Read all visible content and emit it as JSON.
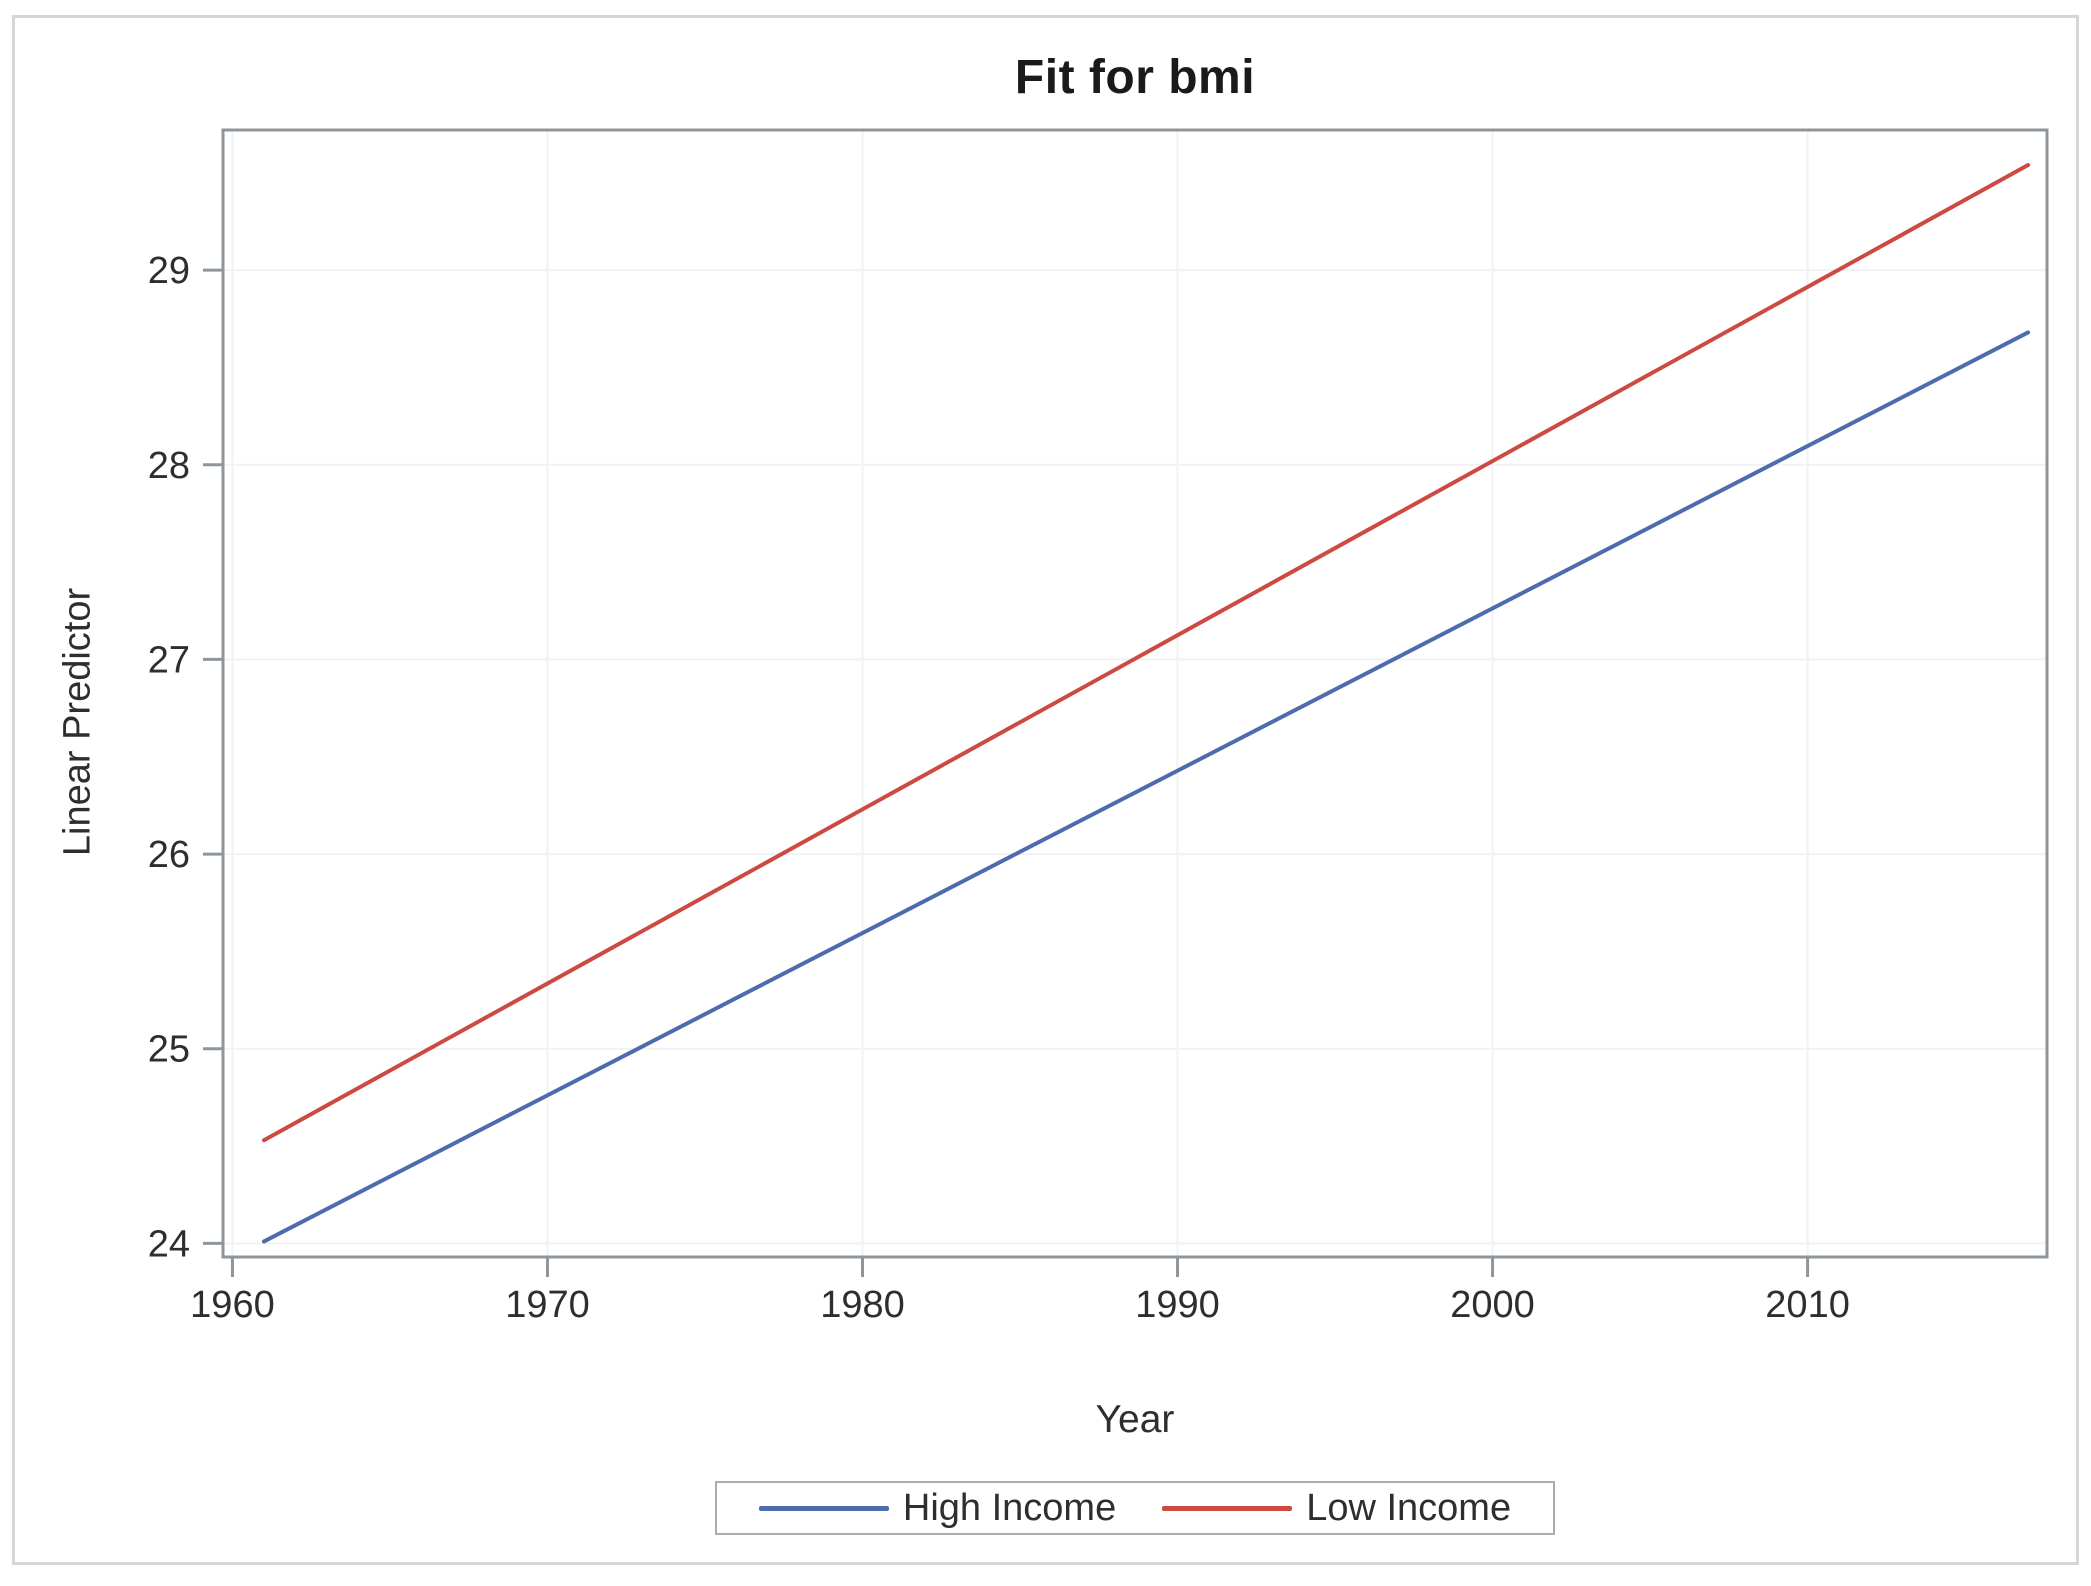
{
  "colors": {
    "frame": "#8f969b",
    "grid": "#f0f2f3",
    "tick_mark": "#8f969b",
    "tick_label": "#2e2e2e",
    "outer_border": "#d3d6d8",
    "legend_border": "#a8adb0",
    "high_income": "#4c6cae",
    "low_income": "#cc4a41"
  },
  "chart_data": {
    "type": "line",
    "title": "Fit for bmi",
    "xlabel": "Year",
    "ylabel": "Linear Predictor",
    "xlim": [
      1959.7,
      2017.6
    ],
    "ylim": [
      23.93,
      29.72
    ],
    "x_ticks": [
      1960,
      1970,
      1980,
      1990,
      2000,
      2010
    ],
    "y_ticks": [
      24,
      25,
      26,
      27,
      28,
      29
    ],
    "grid": true,
    "legend_position": "bottom",
    "series": [
      {
        "name": "High Income",
        "color": "#4c6cae",
        "x": [
          1961,
          2017
        ],
        "y": [
          24.01,
          28.68
        ]
      },
      {
        "name": "Low Income",
        "color": "#cc4a41",
        "x": [
          1961,
          2017
        ],
        "y": [
          24.53,
          29.54
        ]
      }
    ]
  }
}
